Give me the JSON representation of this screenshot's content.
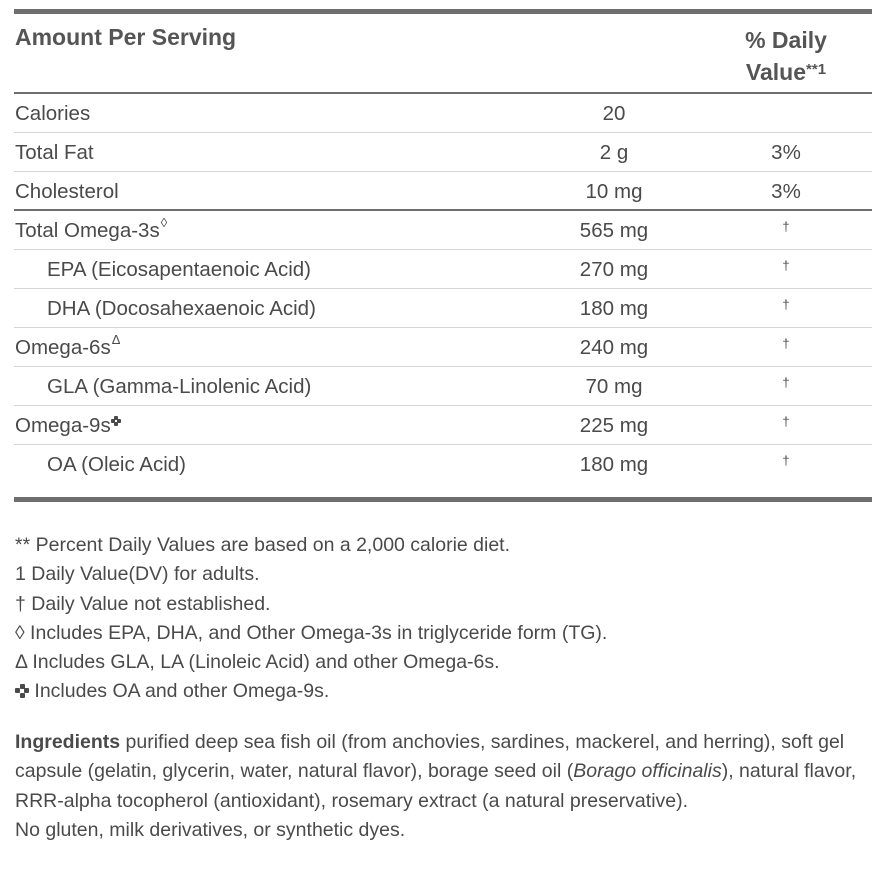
{
  "header": {
    "amount_label": "Amount Per Serving",
    "dv_label_line1": "% Daily",
    "dv_label_line2": "Value",
    "dv_marker": "**1"
  },
  "rows": [
    {
      "name": "Calories",
      "amount": "20",
      "dv": ""
    },
    {
      "name": "Total Fat",
      "amount": "2 g",
      "dv": "3%"
    },
    {
      "name": "Cholesterol",
      "amount": "10 mg",
      "dv": "3%"
    },
    {
      "name": "Total Omega-3s",
      "marker": "◊",
      "amount": "565 mg",
      "dv": "†"
    },
    {
      "name": "EPA (Eicosapentaenoic Acid)",
      "amount": "270 mg",
      "dv": "†"
    },
    {
      "name": "DHA (Docosahexaenoic Acid)",
      "amount": "180 mg",
      "dv": "†"
    },
    {
      "name": "Omega-6s",
      "marker": "Δ",
      "amount": "240 mg",
      "dv": "†"
    },
    {
      "name": "GLA (Gamma-Linolenic Acid)",
      "amount": "70 mg",
      "dv": "†"
    },
    {
      "name": "Omega-9s",
      "marker_icon": "four-dot-cross-icon",
      "amount": "225 mg",
      "dv": "†"
    },
    {
      "name": "OA (Oleic Acid)",
      "amount": "180 mg",
      "dv": "†"
    }
  ],
  "footnotes": [
    "** Percent Daily Values are based on a 2,000 calorie diet.",
    "1 Daily Value(DV) for adults.",
    "† Daily Value not established.",
    "◊ Includes EPA, DHA, and Other Omega-3s in triglyceride form (TG).",
    "Δ Includes GLA, LA (Linoleic Acid) and other Omega-6s.",
    "Includes OA and other Omega-9s."
  ],
  "ingredients": {
    "label": "Ingredients",
    "text_before_italic": " purified deep sea fish oil (from anchovies, sardines, mackerel, and herring), soft gel capsule (gelatin, glycerin, water, natural flavor), borage seed oil (",
    "italic": "Borago officinalis",
    "text_after_italic": "), natural flavor, RRR-alpha tocopherol (antioxidant), rosemary extract (a natural preservative).",
    "allergen_note": "No gluten, milk derivatives, or synthetic dyes."
  }
}
